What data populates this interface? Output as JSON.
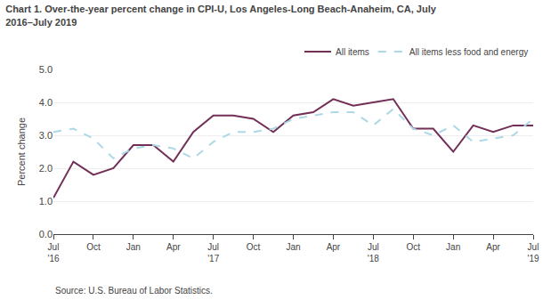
{
  "chart_data": {
    "type": "line",
    "title": "Chart 1. Over-the-year percent change in CPI-U, Los Angeles-Long Beach-Anaheim, CA, July\n2016–July 2019",
    "y_label": "Percent change",
    "source": "Source: U.S. Bureau of Labor Statistics.",
    "categories": [
      "Jul\n'16",
      null,
      "Oct",
      null,
      "Jan",
      null,
      "Apr",
      null,
      "Jul\n'17",
      null,
      "Oct",
      null,
      "Jan",
      null,
      "Apr",
      null,
      "Jul\n'18",
      null,
      "Oct",
      null,
      "Jan",
      null,
      "Apr",
      null,
      "Jul\n'19"
    ],
    "series": [
      {
        "name": "All items",
        "color": "#722F57",
        "line_style": "solid",
        "values": [
          1.1,
          2.2,
          1.8,
          2.0,
          2.7,
          2.7,
          2.2,
          3.1,
          3.6,
          3.6,
          3.5,
          3.1,
          3.6,
          3.7,
          4.1,
          3.9,
          4.0,
          4.1,
          3.2,
          3.2,
          2.5,
          3.3,
          3.1,
          3.3,
          3.3
        ]
      },
      {
        "name": "All items less food and energy",
        "color": "#ADD8E6",
        "line_style": "dashed",
        "values": [
          3.1,
          3.2,
          2.9,
          2.3,
          2.6,
          2.7,
          2.6,
          2.3,
          2.8,
          3.1,
          3.1,
          3.2,
          3.5,
          3.6,
          3.7,
          3.7,
          3.3,
          3.8,
          3.2,
          3.0,
          3.3,
          2.8,
          2.9,
          3.0,
          3.5
        ]
      }
    ],
    "ylim": [
      0.0,
      5.0
    ],
    "yticks": [
      {
        "value": 0,
        "label": "0.0"
      },
      {
        "value": 1,
        "label": "1.0"
      },
      {
        "value": 2,
        "label": "2.0"
      },
      {
        "value": 3,
        "label": "3.0"
      },
      {
        "value": 4,
        "label": "4.0"
      },
      {
        "value": 5,
        "label": "5.0"
      }
    ],
    "grid": true,
    "legend": "upper right"
  }
}
